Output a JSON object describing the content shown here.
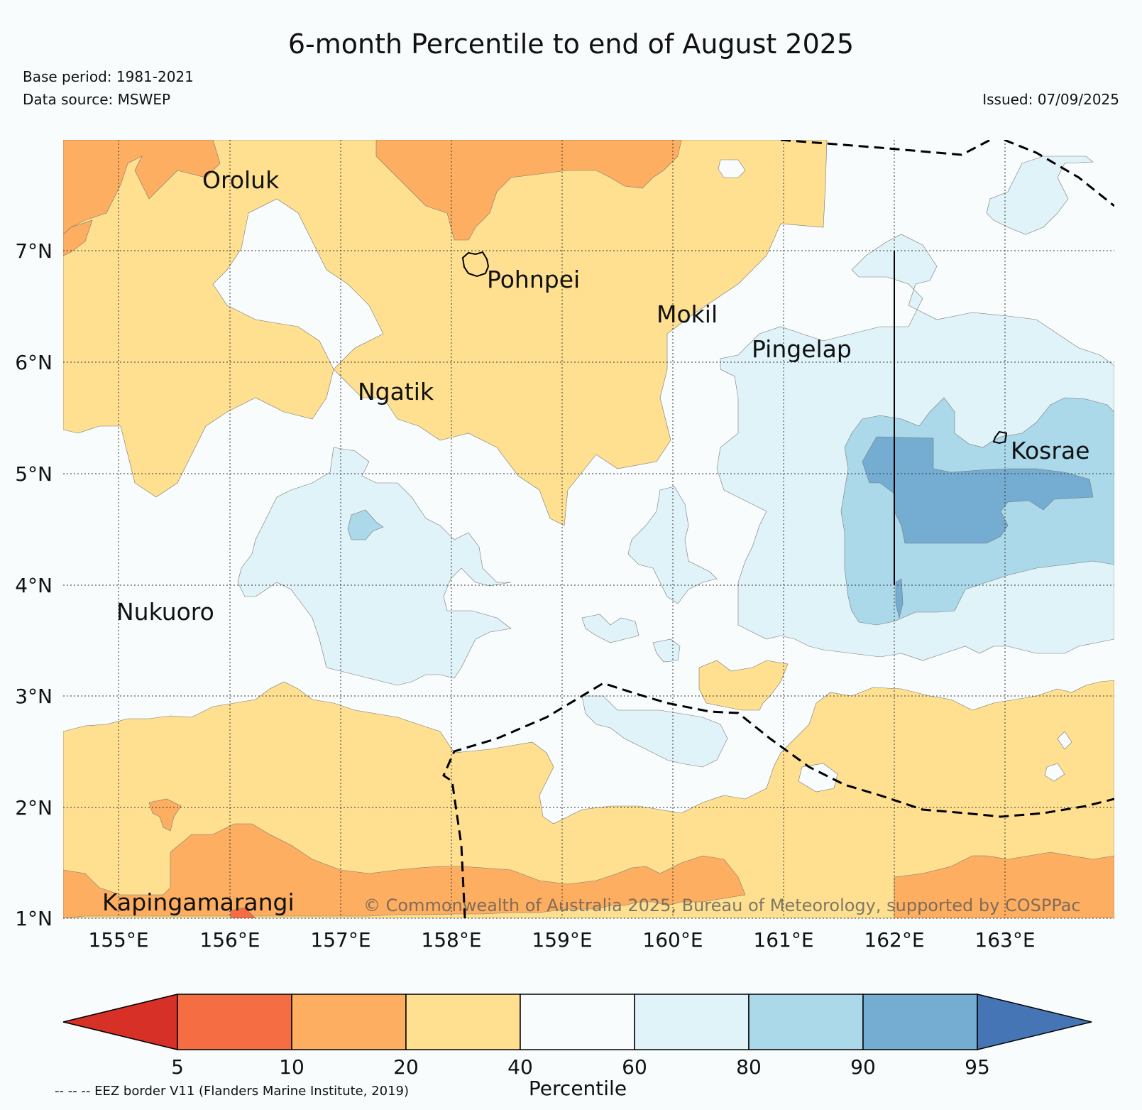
{
  "title": "6-month Percentile to end of August 2025",
  "meta": {
    "base_period": "Base period: 1981-2021",
    "data_source": "Data source: MSWEP",
    "issued": "Issued: 07/09/2025"
  },
  "axes": {
    "lon_labels": [
      "155°E",
      "156°E",
      "157°E",
      "158°E",
      "159°E",
      "160°E",
      "161°E",
      "162°E",
      "163°E"
    ],
    "lat_labels": [
      "7°N",
      "6°N",
      "5°N",
      "4°N",
      "3°N",
      "2°N",
      "1°N"
    ]
  },
  "places": [
    {
      "name": "Oroluk"
    },
    {
      "name": "Pohnpei"
    },
    {
      "name": "Mokil"
    },
    {
      "name": "Pingelap"
    },
    {
      "name": "Ngatik"
    },
    {
      "name": "Kosrae"
    },
    {
      "name": "Nukuoro"
    },
    {
      "name": "Kapingamarangi"
    }
  ],
  "copyright": "© Commonwealth of Australia 2025, Bureau of Meteorology, supported by COSPPac",
  "colorbar": {
    "label": "Percentile",
    "ticks": [
      "5",
      "10",
      "20",
      "40",
      "60",
      "80",
      "90",
      "95"
    ],
    "colors": {
      "below_5": "#d73027",
      "5_10": "#f46d43",
      "10_20": "#fdae61",
      "20_40": "#fee090",
      "40_60": "#f8fcfd",
      "60_80": "#e0f3f8",
      "80_90": "#abd9e9",
      "90_95": "#74add1",
      "above_95": "#4575b4"
    }
  },
  "eez_note": "-- -- -- EEZ border V11 (Flanders Marine Institute, 2019)"
}
